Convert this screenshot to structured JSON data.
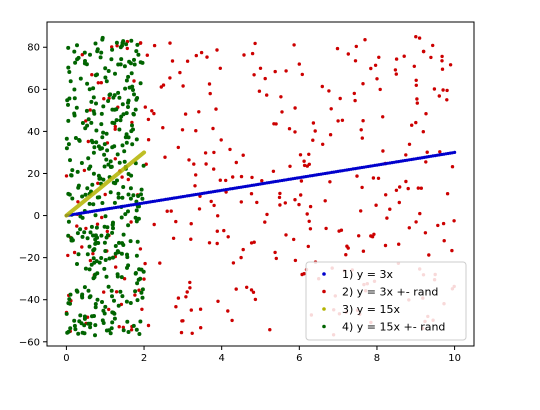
{
  "chart_data": {
    "type": "scatter",
    "title": "",
    "xlabel": "",
    "ylabel": "",
    "xlim": [
      -0.5,
      10.5
    ],
    "ylim": [
      -62,
      92
    ],
    "x_ticks": [
      0,
      2,
      4,
      6,
      8,
      10
    ],
    "y_ticks": [
      -60,
      -40,
      -20,
      0,
      20,
      40,
      60,
      80
    ],
    "grid": false,
    "legend_position": "lower-right",
    "series": [
      {
        "name": "1) y = 3x",
        "kind": "line-of-points",
        "color": "#0000cc",
        "x_range": [
          0,
          10
        ],
        "slope": 3,
        "intercept": 0
      },
      {
        "name": "2) y = 3x +- rand",
        "kind": "scatter",
        "color": "#cc0000",
        "x_range": [
          0,
          10
        ],
        "y_range": [
          -57,
          85
        ],
        "sample_points": [
          [
            0.1,
            -55
          ],
          [
            0.5,
            45
          ],
          [
            1.0,
            10
          ],
          [
            1.5,
            -30
          ],
          [
            2.5,
            62
          ],
          [
            3.0,
            -50
          ],
          [
            3.8,
            30
          ],
          [
            4.5,
            -20
          ],
          [
            5.0,
            70
          ],
          [
            5.5,
            5
          ],
          [
            6.0,
            72
          ],
          [
            6.5,
            -30
          ],
          [
            7.0,
            45
          ],
          [
            7.5,
            -45
          ],
          [
            8.0,
            65
          ],
          [
            8.5,
            12
          ],
          [
            9.0,
            85
          ],
          [
            9.2,
            78
          ],
          [
            9.5,
            -28
          ],
          [
            9.8,
            55
          ]
        ]
      },
      {
        "name": "3) y = 15x",
        "kind": "line",
        "color": "#b3b300",
        "x_range": [
          0,
          2
        ],
        "slope": 15,
        "intercept": 0
      },
      {
        "name": "4) y = 15x +- rand",
        "kind": "scatter",
        "color": "#006400",
        "x_range": [
          0,
          2
        ],
        "y_range": [
          -57,
          85
        ],
        "sample_points": [
          [
            0.05,
            45
          ],
          [
            0.2,
            -50
          ],
          [
            0.4,
            25
          ],
          [
            0.6,
            60
          ],
          [
            0.8,
            -40
          ],
          [
            1.0,
            70
          ],
          [
            1.2,
            -20
          ],
          [
            1.4,
            80
          ],
          [
            1.6,
            10
          ],
          [
            1.8,
            55
          ],
          [
            1.9,
            -30
          ]
        ]
      }
    ]
  },
  "legend": {
    "items": [
      {
        "label": "1) y = 3x",
        "color": "#0000cc",
        "marker": "dot"
      },
      {
        "label": "2) y = 3x +- rand",
        "color": "#cc0000",
        "marker": "dot"
      },
      {
        "label": "3) y = 15x",
        "color": "#b3b300",
        "marker": "dot"
      },
      {
        "label": "4) y = 15x +- rand",
        "color": "#006400",
        "marker": "dot"
      }
    ]
  }
}
